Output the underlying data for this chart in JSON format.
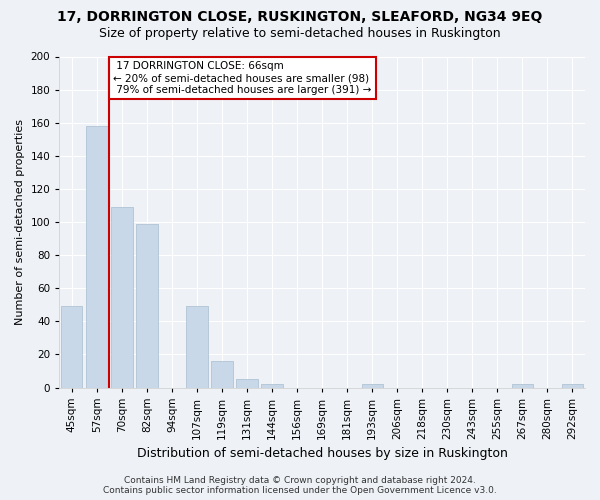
{
  "title1": "17, DORRINGTON CLOSE, RUSKINGTON, SLEAFORD, NG34 9EQ",
  "title2": "Size of property relative to semi-detached houses in Ruskington",
  "xlabel": "Distribution of semi-detached houses by size in Ruskington",
  "ylabel": "Number of semi-detached properties",
  "footer": "Contains HM Land Registry data © Crown copyright and database right 2024.\nContains public sector information licensed under the Open Government Licence v3.0.",
  "categories": [
    "45sqm",
    "57sqm",
    "70sqm",
    "82sqm",
    "94sqm",
    "107sqm",
    "119sqm",
    "131sqm",
    "144sqm",
    "156sqm",
    "169sqm",
    "181sqm",
    "193sqm",
    "206sqm",
    "218sqm",
    "230sqm",
    "243sqm",
    "255sqm",
    "267sqm",
    "280sqm",
    "292sqm"
  ],
  "values": [
    49,
    158,
    109,
    99,
    0,
    49,
    16,
    5,
    2,
    0,
    0,
    0,
    2,
    0,
    0,
    0,
    0,
    0,
    2,
    0,
    2
  ],
  "bar_color": "#c8d8e8",
  "bar_edge_color": "#a8bece",
  "property_line_x": 1.5,
  "property_sqm": 66,
  "property_label": "17 DORRINGTON CLOSE: 66sqm",
  "smaller_pct": "20%",
  "smaller_n": 98,
  "larger_pct": "79%",
  "larger_n": 391,
  "annotation_box_color": "#ffffff",
  "annotation_box_edge": "#cc0000",
  "property_line_color": "#cc0000",
  "ylim": [
    0,
    200
  ],
  "yticks": [
    0,
    20,
    40,
    60,
    80,
    100,
    120,
    140,
    160,
    180,
    200
  ],
  "bg_color": "#eef2f7",
  "grid_color": "#ffffff",
  "title_fontsize": 10,
  "subtitle_fontsize": 9,
  "ylabel_fontsize": 8,
  "xlabel_fontsize": 9,
  "tick_fontsize": 7.5,
  "footer_fontsize": 6.5
}
